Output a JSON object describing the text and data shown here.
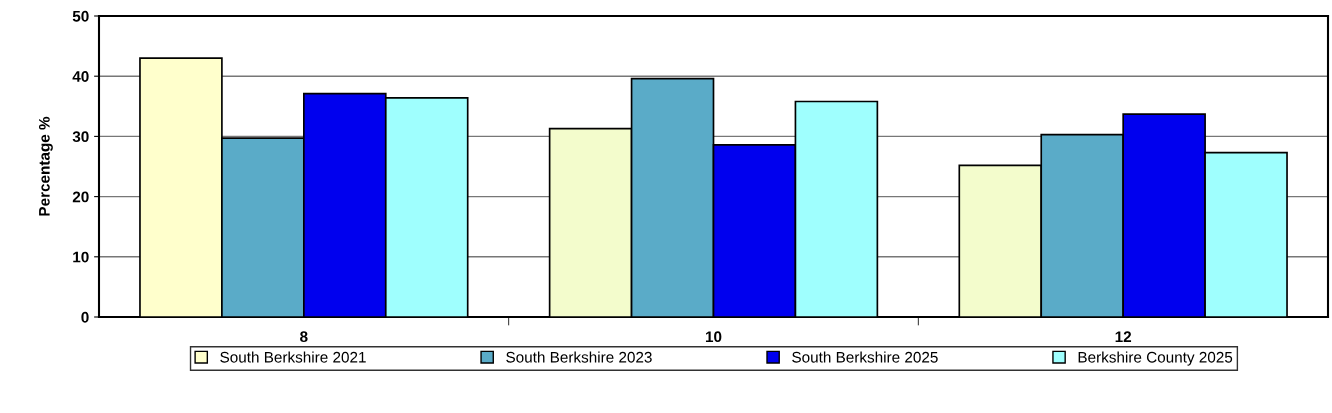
{
  "chart_data": {
    "type": "bar",
    "categories": [
      "8",
      "10",
      "12"
    ],
    "ylabel": "Percentage %",
    "ylim": [
      0,
      50
    ],
    "yticks": [
      0,
      10,
      20,
      30,
      40,
      50
    ],
    "grid": "y",
    "legend": "bottom",
    "series": [
      {
        "name": "South Berkshire 2021",
        "color": "#ffffcc",
        "colors": [
          "#ffffcc",
          "#f3fccc",
          "#f3fccc"
        ],
        "values": [
          43.0,
          31.3,
          25.2
        ]
      },
      {
        "name": "South Berkshire 2023",
        "color": "#5aabc8",
        "values": [
          29.7,
          39.6,
          30.3
        ]
      },
      {
        "name": "South Berkshire 2025",
        "color": "#0000ee",
        "values": [
          37.1,
          28.6,
          33.7
        ]
      },
      {
        "name": "Berkshire County 2025",
        "color": "#9ffffe",
        "values": [
          36.4,
          35.8,
          27.3
        ]
      }
    ]
  }
}
